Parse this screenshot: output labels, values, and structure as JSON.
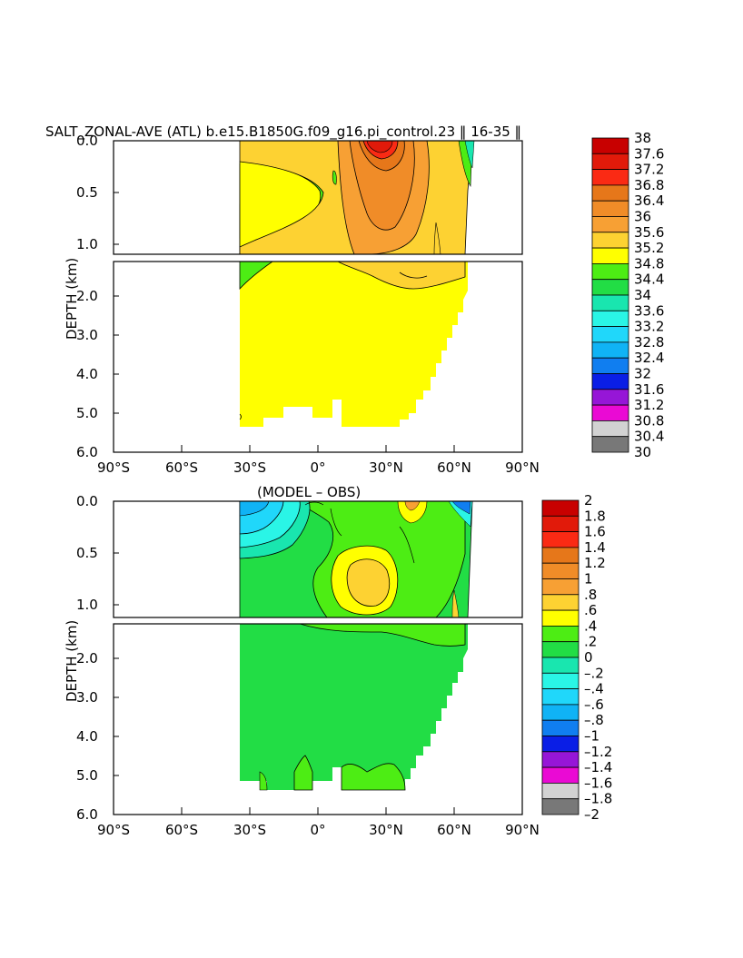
{
  "chart_data": [
    {
      "type": "heatmap",
      "title": "SALT_ZONAL-AVE (ATL) b.e15.B1850G.f09_g16.pi_control.23 ‖ 16-35 ‖",
      "ylabel": "DEPTH (km)",
      "xlabel": "",
      "x_ticks": [
        "90°S",
        "60°S",
        "30°S",
        "0°",
        "30°N",
        "60°N",
        "90°N"
      ],
      "y_ticks_upper": [
        "0.0",
        "0.5",
        "1.0"
      ],
      "y_ticks_lower": [
        "2.0",
        "3.0",
        "4.0",
        "5.0",
        "6.0"
      ],
      "xlim": [
        -90,
        90
      ],
      "ylim_upper_km": [
        0,
        1.15
      ],
      "ylim_lower_km": [
        1.15,
        6.0
      ],
      "colorbar_labels": [
        "38",
        "37.6",
        "37.2",
        "36.8",
        "36.4",
        "36",
        "35.6",
        "35.2",
        "34.8",
        "34.4",
        "34",
        "33.6",
        "33.2",
        "32.8",
        "32.4",
        "32",
        "31.6",
        "31.2",
        "30.8",
        "30.4",
        "30"
      ],
      "colorbar_colors": [
        "#c80000",
        "#e11a0a",
        "#fa2a14",
        "#e6771a",
        "#f08c28",
        "#f7a034",
        "#fdd232",
        "#ffff00",
        "#4ded14",
        "#22dd45",
        "#19e6af",
        "#2af5e6",
        "#20d7fa",
        "#10b3f5",
        "#107ef0",
        "#0a1ee6",
        "#9616d7",
        "#ea0ad4",
        "#d2d2d2",
        "#787878"
      ],
      "levels_shown": {
        "surface_max": 37.4,
        "subtropical_north": 36.2,
        "deep_water": 34.9,
        "southern_intermediate": 34.6
      }
    },
    {
      "type": "heatmap",
      "title": "(MODEL – OBS)",
      "ylabel": "DEPTH (km)",
      "xlabel": "",
      "x_ticks": [
        "90°S",
        "60°S",
        "30°S",
        "0°",
        "30°N",
        "60°N",
        "90°N"
      ],
      "y_ticks_upper": [
        "0.0",
        "0.5",
        "1.0"
      ],
      "y_ticks_lower": [
        "2.0",
        "3.0",
        "4.0",
        "5.0",
        "6.0"
      ],
      "xlim": [
        -90,
        90
      ],
      "ylim_upper_km": [
        0,
        1.15
      ],
      "ylim_lower_km": [
        1.15,
        6.0
      ],
      "colorbar_labels": [
        "2",
        "1.8",
        "1.6",
        "1.4",
        "1.2",
        "1",
        ".8",
        ".6",
        ".4",
        ".2",
        "0",
        "–.2",
        "–.4",
        "–.6",
        "–.8",
        "–1",
        "–1.2",
        "–1.4",
        "–1.6",
        "–1.8",
        "–2"
      ],
      "colorbar_colors": [
        "#c80000",
        "#e11a0a",
        "#fa2a14",
        "#e6771a",
        "#f08c28",
        "#f7a034",
        "#fdd232",
        "#ffff00",
        "#4ded14",
        "#22dd45",
        "#19e6af",
        "#2af5e6",
        "#20d7fa",
        "#10b3f5",
        "#107ef0",
        "#0a1ee6",
        "#9616d7",
        "#ea0ad4",
        "#d2d2d2",
        "#787878"
      ],
      "levels_shown": {
        "deep_bias": 0.1,
        "subtropical_anomaly": 0.7,
        "southern_upper_bias": -0.4
      }
    }
  ]
}
